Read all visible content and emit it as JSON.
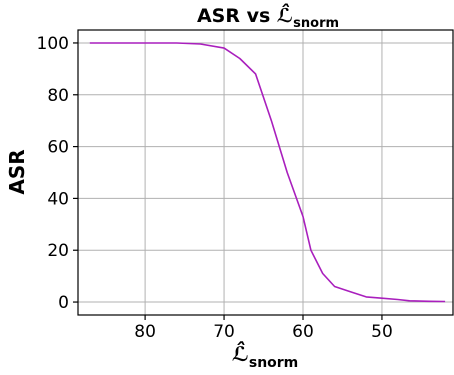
{
  "chart_data": {
    "type": "line",
    "title_main": "ASR vs ",
    "title_symbol": "ℒ̂",
    "title_subscript": "snorm",
    "xlabel_symbol": "ℒ̂",
    "xlabel_subscript": "snorm",
    "ylabel": "ASR",
    "x_reversed": true,
    "xlim": [
      88.5,
      41
    ],
    "ylim": [
      -5,
      105
    ],
    "xticks": [
      80,
      70,
      60,
      50
    ],
    "yticks": [
      0,
      20,
      40,
      60,
      80,
      100
    ],
    "grid": true,
    "line_color": "#a91fbd",
    "series": [
      {
        "x": [
          87,
          84,
          80,
          76,
          73,
          70,
          68,
          66,
          64,
          62,
          60,
          59,
          57.5,
          56,
          54,
          52,
          50,
          48,
          46.5,
          44,
          42
        ],
        "y": [
          100,
          100,
          100,
          100,
          99.6,
          98,
          94,
          88,
          70,
          50,
          33,
          20,
          11,
          6,
          4,
          2,
          1.5,
          1,
          0.5,
          0.3,
          0.2
        ]
      }
    ]
  }
}
